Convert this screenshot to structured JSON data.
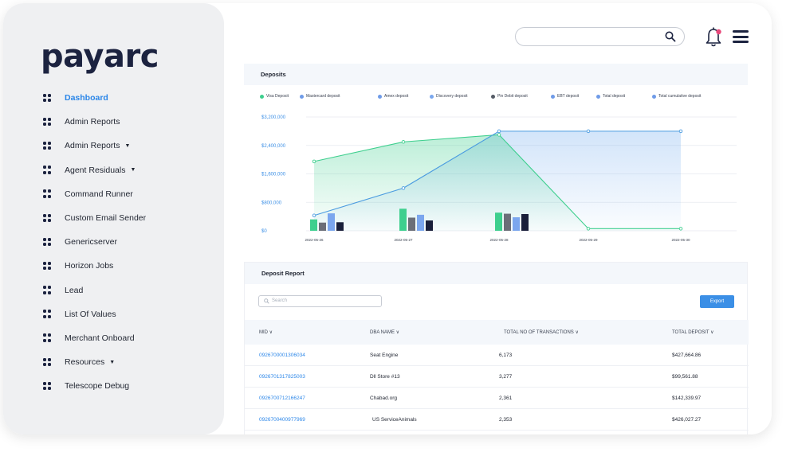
{
  "brand": {
    "logo_text": "payarc"
  },
  "sidebar": {
    "items": [
      {
        "label": "Dashboard",
        "active": true,
        "dropdown": false
      },
      {
        "label": "Admin Reports",
        "active": false,
        "dropdown": false
      },
      {
        "label": "Admin Reports",
        "active": false,
        "dropdown": true
      },
      {
        "label": "Agent Residuals",
        "active": false,
        "dropdown": true
      },
      {
        "label": "Command Runner",
        "active": false,
        "dropdown": false
      },
      {
        "label": "Custom Email Sender",
        "active": false,
        "dropdown": false
      },
      {
        "label": "Genericserver",
        "active": false,
        "dropdown": false
      },
      {
        "label": "Horizon Jobs",
        "active": false,
        "dropdown": false
      },
      {
        "label": "Lead",
        "active": false,
        "dropdown": false
      },
      {
        "label": "List Of Values",
        "active": false,
        "dropdown": false
      },
      {
        "label": "Merchant Onboard",
        "active": false,
        "dropdown": false
      },
      {
        "label": "Resources",
        "active": false,
        "dropdown": true
      },
      {
        "label": "Telescope Debug",
        "active": false,
        "dropdown": false
      }
    ]
  },
  "header": {
    "search_value": "",
    "notification_dot_color": "#e8487a"
  },
  "deposits": {
    "title": "Deposits",
    "legend": [
      {
        "label": "Visa Deposit",
        "color": "#3ecf8e"
      },
      {
        "label": "Mastercard deposit",
        "color": "#6f9be8"
      },
      {
        "label": "Amex deposit",
        "color": "#6f9be8"
      },
      {
        "label": "Discovery deposit",
        "color": "#7aa7ee"
      },
      {
        "label": "Pin Debit deposit",
        "color": "#555b66"
      },
      {
        "label": "EBT deposit",
        "color": "#6f9be8"
      },
      {
        "label": "Total deposit",
        "color": "#6f9be8"
      },
      {
        "label": "Total cumulative deposit",
        "color": "#6f9be8"
      }
    ]
  },
  "chart_data": {
    "type": "line",
    "title": "Deposits",
    "x": [
      "2022-05-26",
      "2022-05-27",
      "2022-05-28",
      "2022-05-29",
      "2022-05-30"
    ],
    "y_ticks": [
      "$3,200,000",
      "$2,400,000",
      "$1,600,000",
      "$800,000",
      "$0"
    ],
    "ylim": [
      0,
      3200000
    ],
    "grid": true,
    "legend_position": "top",
    "line_series": [
      {
        "name": "Total deposit",
        "color": "#3ecf8e",
        "values": [
          1950000,
          2500000,
          2700000,
          60000,
          60000
        ]
      },
      {
        "name": "Total cumulative deposit",
        "color": "#4a9be0",
        "values": [
          430000,
          1200000,
          2800000,
          2800000,
          2800000
        ]
      }
    ],
    "bar_series": [
      {
        "name": "Visa Deposit",
        "color": "#3ecf8e",
        "values": [
          320000,
          620000,
          510000,
          0,
          0
        ]
      },
      {
        "name": "Pin Debit deposit",
        "color": "#6b6e78",
        "values": [
          230000,
          370000,
          480000,
          0,
          0
        ]
      },
      {
        "name": "Discovery deposit",
        "color": "#7ba6ee",
        "values": [
          490000,
          450000,
          380000,
          0,
          0
        ]
      },
      {
        "name": "Total deposit",
        "color": "#1a1f3a",
        "values": [
          240000,
          290000,
          470000,
          0,
          0
        ]
      }
    ]
  },
  "report": {
    "title": "Deposit Report",
    "search_placeholder": "Search",
    "export_label": "Export",
    "columns": [
      "MID",
      "DBA NAME",
      "TOTAL NO OF TRANSACTIONS",
      "TOTAL DEPOSIT"
    ],
    "rows": [
      {
        "mid": "0926700001306034",
        "dba": "Seat Engine",
        "transactions": "6,173",
        "deposit": "$427,664.86"
      },
      {
        "mid": "0926701317825003",
        "dba": "Dll Store #13",
        "transactions": "3,277",
        "deposit": "$99,561.88"
      },
      {
        "mid": "0926700712166247",
        "dba": "Chabad.org",
        "transactions": "2,361",
        "deposit": "$142,339.97"
      },
      {
        "mid": "0926700400977969",
        "dba": "US ServiceAnimals",
        "transactions": "2,353",
        "deposit": "$426,027.27"
      }
    ]
  }
}
